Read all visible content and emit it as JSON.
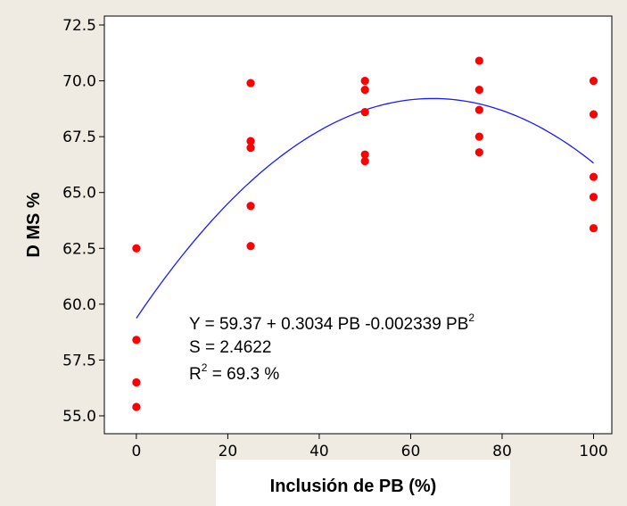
{
  "chart_data": {
    "type": "scatter",
    "title": "",
    "xlabel": "Inclusión de PB (%)",
    "ylabel": "D MS %",
    "xlim": [
      -7,
      104
    ],
    "ylim": [
      54.2,
      72.9
    ],
    "xticks": [
      {
        "value": 0,
        "label": "0"
      },
      {
        "value": 20,
        "label": "20"
      },
      {
        "value": 40,
        "label": "40"
      },
      {
        "value": 60,
        "label": "60"
      },
      {
        "value": 80,
        "label": "80"
      },
      {
        "value": 100,
        "label": "100"
      }
    ],
    "yticks": [
      {
        "value": 55.0,
        "label": "55.0"
      },
      {
        "value": 57.5,
        "label": "57.5"
      },
      {
        "value": 60.0,
        "label": "60.0"
      },
      {
        "value": 62.5,
        "label": "62.5"
      },
      {
        "value": 65.0,
        "label": "65.0"
      },
      {
        "value": 67.5,
        "label": "67.5"
      },
      {
        "value": 70.0,
        "label": "70.0"
      },
      {
        "value": 72.5,
        "label": "72.5"
      }
    ],
    "grid": false,
    "colors": {
      "points": "#ff0000",
      "fit_line": "#1a1aff"
    },
    "points": [
      {
        "x": 0,
        "y": 62.5
      },
      {
        "x": 0,
        "y": 58.4
      },
      {
        "x": 0,
        "y": 56.5
      },
      {
        "x": 0,
        "y": 55.4
      },
      {
        "x": 25,
        "y": 69.9
      },
      {
        "x": 25,
        "y": 67.3
      },
      {
        "x": 25,
        "y": 67.0
      },
      {
        "x": 25,
        "y": 64.4
      },
      {
        "x": 25,
        "y": 62.6
      },
      {
        "x": 50,
        "y": 70.0
      },
      {
        "x": 50,
        "y": 69.6
      },
      {
        "x": 50,
        "y": 68.6
      },
      {
        "x": 50,
        "y": 66.7
      },
      {
        "x": 50,
        "y": 66.4
      },
      {
        "x": 75,
        "y": 70.9
      },
      {
        "x": 75,
        "y": 69.6
      },
      {
        "x": 75,
        "y": 68.7
      },
      {
        "x": 75,
        "y": 67.5
      },
      {
        "x": 75,
        "y": 66.8
      },
      {
        "x": 100,
        "y": 70.0
      },
      {
        "x": 100,
        "y": 68.5
      },
      {
        "x": 100,
        "y": 65.7
      },
      {
        "x": 100,
        "y": 64.8
      },
      {
        "x": 100,
        "y": 63.4
      }
    ],
    "fit": {
      "type": "quadratic",
      "intercept": 59.37,
      "b1": 0.3034,
      "b2": -0.002339,
      "x_range": [
        0,
        100
      ]
    },
    "annotation": {
      "equation_main": "Y = 59.37 + 0.3034 PB -0.002339 PB",
      "equation_sup": "2",
      "s_line": "S = 2.4622",
      "r2_prefix": "R",
      "r2_sup": "2",
      "r2_rest": " = 69.3 %"
    }
  }
}
